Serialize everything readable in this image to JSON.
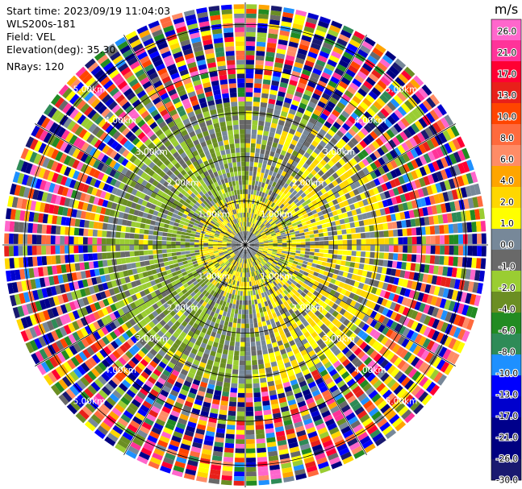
{
  "info": {
    "start_time": "Start time: 2023/09/19 11:04:03",
    "instrument": "WLS200s-181",
    "field": "Field: VEL",
    "elevation": "Elevation(deg): 35.30",
    "nrays": "NRays: 120"
  },
  "chart_data": {
    "type": "heatmap",
    "projection": "polar (PPI scan)",
    "range_unit": "km",
    "ring_labels": [
      "1.00km",
      "2.00km",
      "3.00km",
      "4.00km",
      "5.00km"
    ],
    "ring_ranges": [
      1,
      2,
      3,
      4,
      5
    ],
    "max_range_km": 5.5,
    "colorbar": {
      "unit": "m/s",
      "ticks": [
        "26.0",
        "21.0",
        "17.0",
        "13.0",
        "10.0",
        "8.0",
        "6.0",
        "4.0",
        "2.0",
        "1.0",
        "0.0",
        "-1.0",
        "-2.0",
        "-4.0",
        "-6.0",
        "-8.0",
        "-10.0",
        "-13.0",
        "-17.0",
        "-21.0",
        "-26.0",
        "-30.0"
      ],
      "bins": [
        {
          "label": "> 26",
          "color": "#ff66cc"
        },
        {
          "label": "21 to 26",
          "color": "#ff3399"
        },
        {
          "label": "17 to 21",
          "color": "#ff0033"
        },
        {
          "label": "13 to 17",
          "color": "#e8201a"
        },
        {
          "label": "10 to 13",
          "color": "#ff4500"
        },
        {
          "label": "8 to 10",
          "color": "#ff6a3d"
        },
        {
          "label": "6 to 8",
          "color": "#ff8c66"
        },
        {
          "label": "4 to 6",
          "color": "#ffa500"
        },
        {
          "label": "2 to 4",
          "color": "#ffd700"
        },
        {
          "label": "1 to 2",
          "color": "#ffff00"
        },
        {
          "label": "0 to 1",
          "color": "#778899"
        },
        {
          "label": "-1 to 0",
          "color": "#696969"
        },
        {
          "label": "-2 to -1",
          "color": "#9acd32"
        },
        {
          "label": "-4 to -2",
          "color": "#6b8e23"
        },
        {
          "label": "-6 to -4",
          "color": "#228b22"
        },
        {
          "label": "-8 to -6",
          "color": "#2e8b57"
        },
        {
          "label": "-10 to -8",
          "color": "#1e90ff"
        },
        {
          "label": "-13 to -10",
          "color": "#0000ff"
        },
        {
          "label": "-17 to -13",
          "color": "#0000cd"
        },
        {
          "label": "-21 to -17",
          "color": "#00008b"
        },
        {
          "label": "-26 to -21",
          "color": "#000080"
        },
        {
          "label": "< -26",
          "color": "#191970"
        }
      ]
    },
    "approx_pattern": "Near field (< ~3 km): noisy gray (about -1 to 1 m/s); yellow-green (-2 to -1) on the western/northwestern side, yellow (1 to 4) on the eastern/southeastern side and in a ring near the center. Beyond ~3.2 km: random noise across all colors."
  }
}
